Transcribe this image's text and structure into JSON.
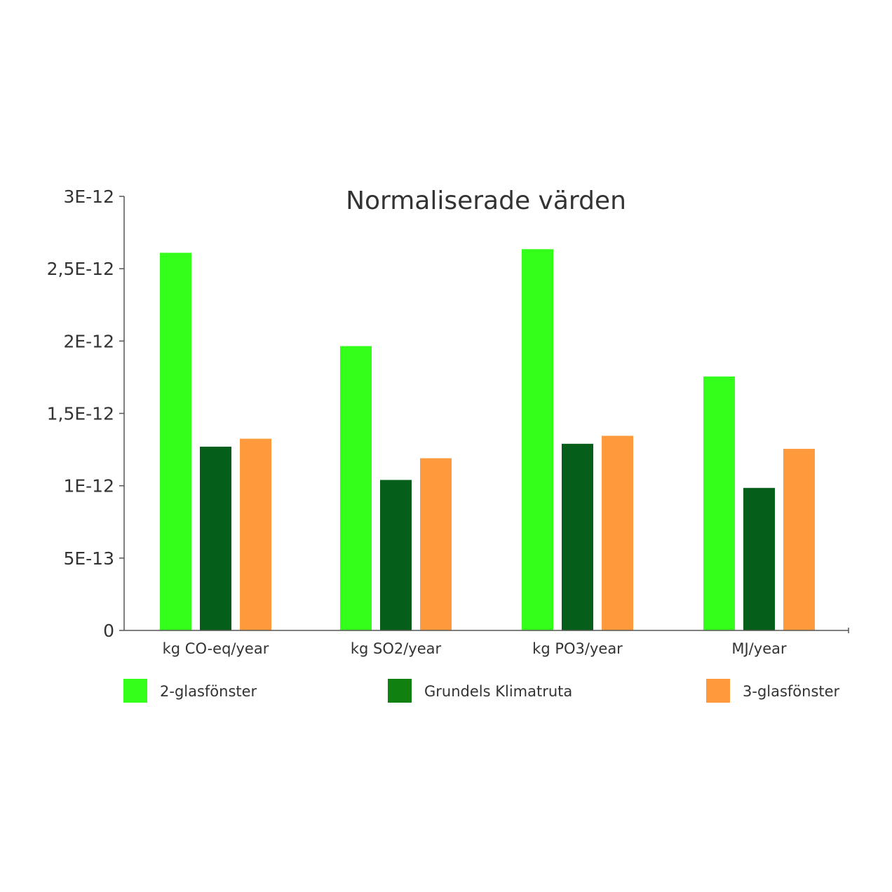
{
  "chart_data": {
    "type": "bar",
    "title": "Normaliserade värden",
    "xlabel": "",
    "ylabel": "",
    "categories": [
      "kg CO-eq/year",
      "kg SO2/year",
      "kg PO3/year",
      "MJ/year"
    ],
    "series": [
      {
        "name": "2-glasfönster",
        "color": "#33ff1a",
        "values": [
          2.61e-12,
          1.965e-12,
          2.635e-12,
          1.755e-12
        ]
      },
      {
        "name": "Grundels Klimatruta",
        "color": "#055e1a",
        "values": [
          1.27e-12,
          1.04e-12,
          1.29e-12,
          9.85e-13
        ]
      },
      {
        "name": "3-glasfönster",
        "color": "#ff9a3c",
        "values": [
          1.325e-12,
          1.19e-12,
          1.345e-12,
          1.255e-12
        ]
      }
    ],
    "legend_colors": [
      "#33ff1a",
      "#108010",
      "#ff9a3c"
    ],
    "ylim": [
      0,
      3e-12
    ],
    "yticks": [
      {
        "value": 0,
        "label": "0"
      },
      {
        "value": 5e-13,
        "label": "5E-13"
      },
      {
        "value": 1e-12,
        "label": "1E-12"
      },
      {
        "value": 1.5e-12,
        "label": "1,5E-12"
      },
      {
        "value": 2e-12,
        "label": "2E-12"
      },
      {
        "value": 2.5e-12,
        "label": "2,5E-12"
      },
      {
        "value": 3e-12,
        "label": "3E-12"
      }
    ],
    "grid": false,
    "legend_position": "bottom"
  }
}
